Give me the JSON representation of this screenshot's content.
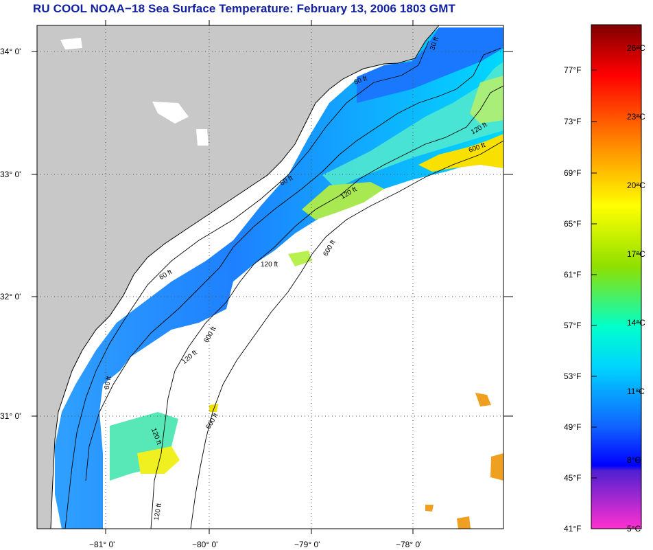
{
  "title": "RU COOL  NOAA−18  Sea Surface Temperature:  February 13, 2006 1803 GMT",
  "map": {
    "latitude_labels": [
      "34° 0'",
      "33° 0'",
      "32° 0'",
      "31° 0'"
    ],
    "longitude_labels": [
      "−81° 0'",
      "−80° 0'",
      "−79° 0'",
      "−78° 0'"
    ],
    "contour_labels": [
      "30 ft",
      "60 ft",
      "120 ft",
      "600 ft",
      "60 ft",
      "120 ft",
      "600 ft",
      "600 ft",
      "120 ft",
      "60 ft",
      "120 ft",
      "600 ft",
      "120 ft",
      "60 ft",
      "120 ft"
    ],
    "colors": {
      "land": "#c8c8c8",
      "ocean_no_data": "#ffffff",
      "contour": "#000000"
    }
  },
  "colorbar": {
    "fahrenheit_labels": [
      "77°F",
      "73°F",
      "69°F",
      "65°F",
      "61°F",
      "57°F",
      "53°F",
      "49°F",
      "45°F",
      "41°F"
    ],
    "celsius_labels": [
      "26°C",
      "23°C",
      "20°C",
      "17°C",
      "14°C",
      "11°C",
      "8°C",
      "5°C"
    ],
    "gradient": [
      "#8b0000",
      "#ff0000",
      "#ff8c00",
      "#ffff00",
      "#7cfc00",
      "#00ffff",
      "#1e90ff",
      "#0000ff",
      "#8a2be2",
      "#ff33cc"
    ]
  }
}
